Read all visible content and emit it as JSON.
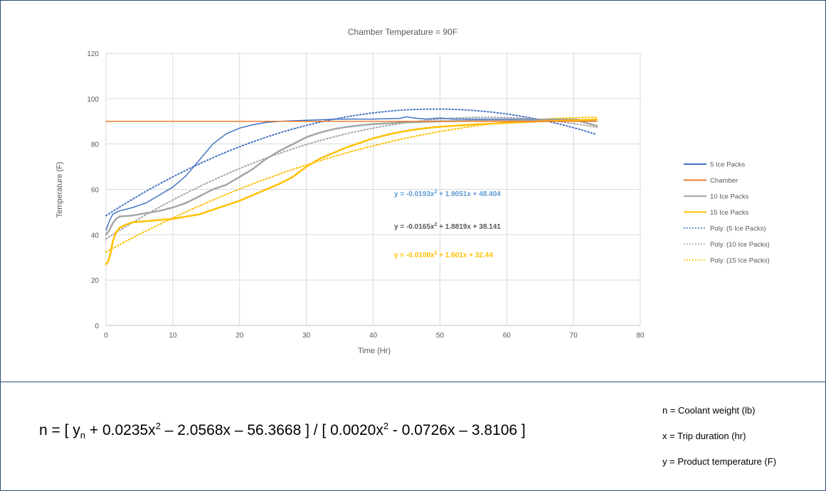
{
  "chart_data": {
    "type": "line",
    "title": "Chamber Temperature = 90F",
    "xlabel": "Time (Hr)",
    "ylabel": "Temperature (F)",
    "xlim": [
      0,
      80
    ],
    "ylim": [
      0,
      120
    ],
    "x_ticks": [
      0,
      10,
      20,
      30,
      40,
      50,
      60,
      70,
      80
    ],
    "y_ticks": [
      0,
      20,
      40,
      60,
      80,
      100,
      120
    ],
    "grid": true,
    "legend_position": "right",
    "series": [
      {
        "name": "5 Ice Packs",
        "color": "#4472c4",
        "style": "solid",
        "points": [
          [
            0,
            42
          ],
          [
            0.5,
            46
          ],
          [
            1,
            49
          ],
          [
            2,
            50.5
          ],
          [
            4,
            52
          ],
          [
            6,
            54
          ],
          [
            8,
            57.5
          ],
          [
            10,
            61
          ],
          [
            12,
            66
          ],
          [
            14,
            73
          ],
          [
            16,
            80
          ],
          [
            18,
            84.5
          ],
          [
            20,
            87
          ],
          [
            22,
            88.5
          ],
          [
            24,
            89.5
          ],
          [
            26,
            90
          ],
          [
            30,
            90.5
          ],
          [
            35,
            91
          ],
          [
            40,
            91
          ],
          [
            44,
            91.3
          ],
          [
            45,
            92
          ],
          [
            46,
            91.5
          ],
          [
            48,
            91
          ],
          [
            50,
            91.5
          ],
          [
            52,
            91
          ],
          [
            55,
            91
          ],
          [
            60,
            91
          ],
          [
            65,
            90.8
          ],
          [
            70,
            91
          ],
          [
            73.5,
            90
          ]
        ]
      },
      {
        "name": "Chamber",
        "color": "#ed7d31",
        "style": "solid",
        "points": [
          [
            0,
            90
          ],
          [
            73.5,
            90
          ]
        ]
      },
      {
        "name": "10 Ice Packs",
        "color": "#a5a5a5",
        "style": "solid",
        "points": [
          [
            0,
            40
          ],
          [
            0.5,
            42
          ],
          [
            1,
            45
          ],
          [
            1.5,
            47
          ],
          [
            2,
            48
          ],
          [
            4,
            48.5
          ],
          [
            6,
            49.5
          ],
          [
            8,
            50.5
          ],
          [
            10,
            52
          ],
          [
            12,
            54
          ],
          [
            14,
            57
          ],
          [
            16,
            60
          ],
          [
            18,
            62
          ],
          [
            20,
            65.5
          ],
          [
            22,
            69
          ],
          [
            24,
            73.5
          ],
          [
            26,
            77
          ],
          [
            28,
            80
          ],
          [
            30,
            83
          ],
          [
            32,
            85
          ],
          [
            34,
            86.5
          ],
          [
            36,
            87.5
          ],
          [
            38,
            88.2
          ],
          [
            40,
            88.8
          ],
          [
            45,
            89.5
          ],
          [
            50,
            90
          ],
          [
            55,
            90.3
          ],
          [
            60,
            90.5
          ],
          [
            65,
            90.5
          ],
          [
            70,
            90.8
          ],
          [
            73.5,
            88
          ]
        ]
      },
      {
        "name": "15 Ice Packs",
        "color": "#ffc000",
        "style": "solid",
        "points": [
          [
            0,
            27
          ],
          [
            0.3,
            28
          ],
          [
            0.7,
            32
          ],
          [
            1,
            37
          ],
          [
            1.5,
            41
          ],
          [
            2,
            43
          ],
          [
            3,
            44.5
          ],
          [
            4,
            45.5
          ],
          [
            6,
            46
          ],
          [
            8,
            46.5
          ],
          [
            10,
            47
          ],
          [
            12,
            48
          ],
          [
            14,
            49
          ],
          [
            16,
            51
          ],
          [
            18,
            53
          ],
          [
            20,
            55
          ],
          [
            22,
            57.5
          ],
          [
            24,
            60
          ],
          [
            26,
            62.5
          ],
          [
            28,
            65.5
          ],
          [
            30,
            70
          ],
          [
            32,
            73.5
          ],
          [
            34,
            76
          ],
          [
            36,
            78.5
          ],
          [
            38,
            80.5
          ],
          [
            40,
            82.5
          ],
          [
            42,
            84
          ],
          [
            44,
            85.3
          ],
          [
            46,
            86.3
          ],
          [
            48,
            87
          ],
          [
            50,
            87.6
          ],
          [
            55,
            88.6
          ],
          [
            60,
            89.3
          ],
          [
            65,
            90
          ],
          [
            70,
            90.5
          ],
          [
            73.5,
            90.8
          ]
        ]
      },
      {
        "name": "Poly. (5 Ice Packs)",
        "color": "#4472c4",
        "style": "dotted",
        "poly": [
          -0.0193,
          1.9051,
          48.404
        ],
        "range": [
          0,
          73.5
        ]
      },
      {
        "name": "Poly. (10 Ice Packs)",
        "color": "#a5a5a5",
        "style": "dotted",
        "poly": [
          -0.0165,
          1.8819,
          38.141
        ],
        "range": [
          0,
          73.5
        ]
      },
      {
        "name": "Poly. (15 Ice Packs)",
        "color": "#ffc000",
        "style": "dotted",
        "poly": [
          -0.0108,
          1.601,
          32.44
        ],
        "range": [
          0,
          73.5
        ]
      }
    ],
    "annotations": [
      {
        "text_parts": [
          "y = -0.0193x",
          "2",
          " + 1.9051x + 48.404"
        ],
        "color": "#5b9bd5"
      },
      {
        "text_parts": [
          "y = -0.0165x",
          "2",
          " + 1.8819x + 38.141"
        ],
        "color": "#595959"
      },
      {
        "text_parts": [
          "y = -0.0108x",
          "2",
          " + 1.601x + 32.44"
        ],
        "color": "#ffc000"
      }
    ]
  },
  "formula": {
    "p1": "n = [ y",
    "sub_n": "n",
    "p2": " + 0.0235x",
    "sup1": "2",
    "p3": " – 2.0568x – 56.3668 ] / [ 0.0020x",
    "sup2": "2",
    "p4": " - 0.0726x – 3.8106 ]"
  },
  "definitions": {
    "n": "n = Coolant weight (lb)",
    "x": "x = Trip duration (hr)",
    "y": "y = Product temperature (F)"
  }
}
